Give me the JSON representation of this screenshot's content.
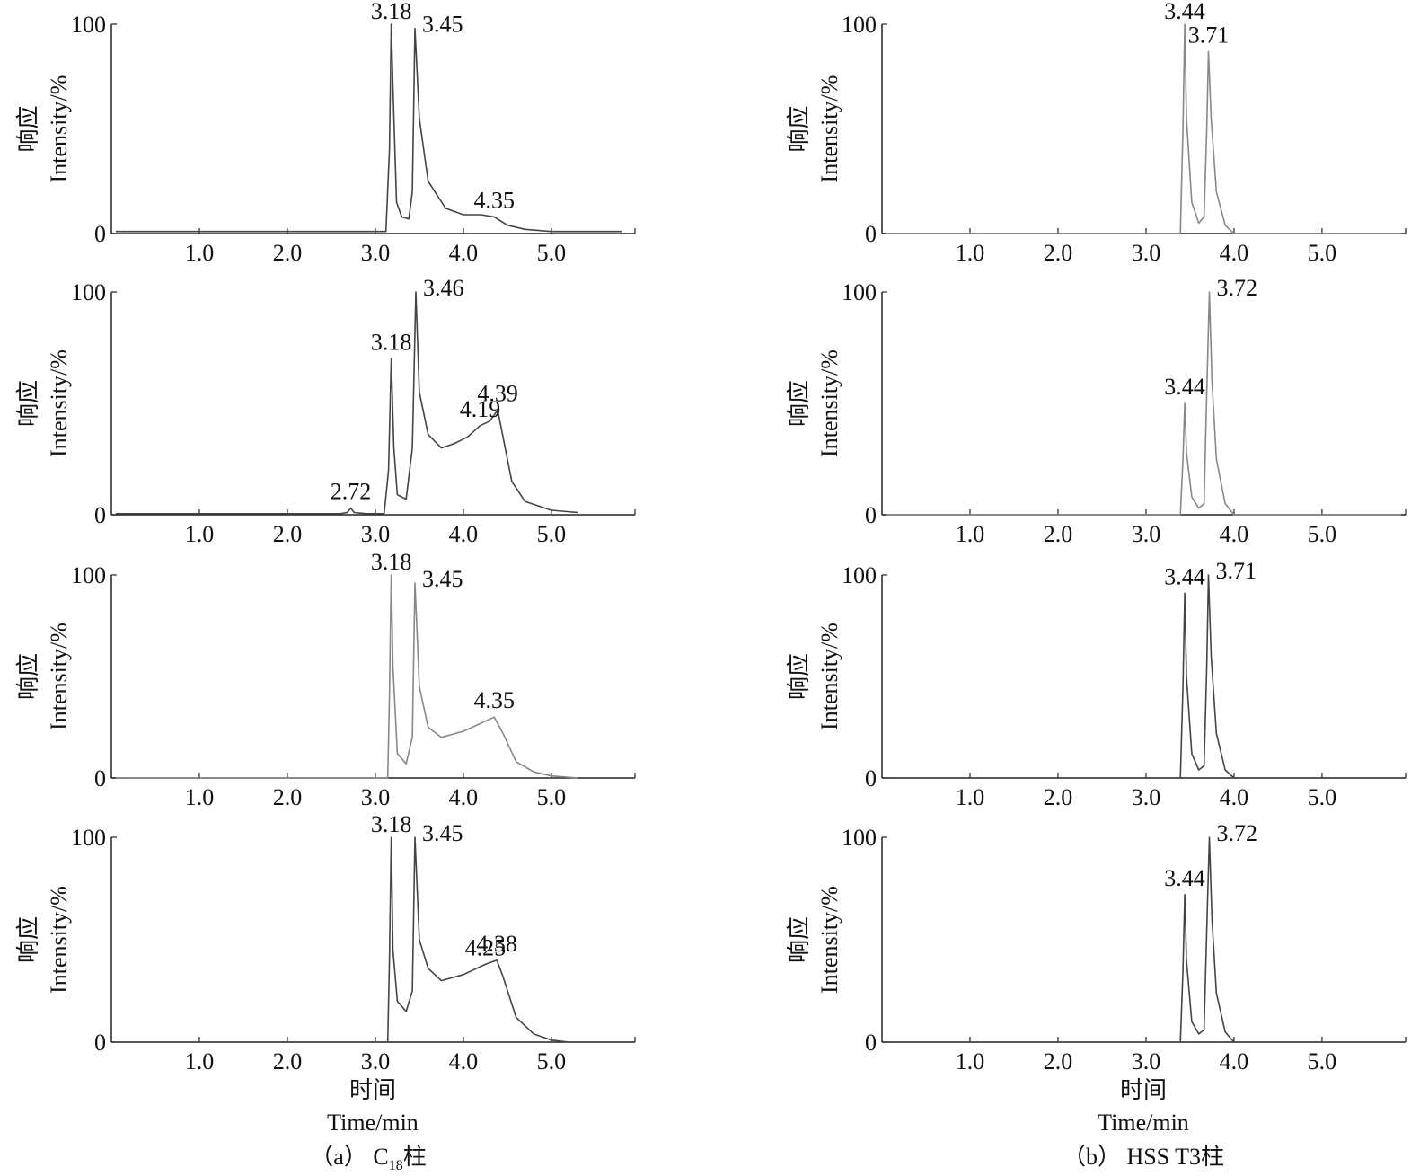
{
  "ytick_labels": [
    "0",
    "100"
  ],
  "ylabel_cn": "响应",
  "ylabel_en": "Intensity/%",
  "xlabel_cn": "时间",
  "xlabel_en": "Time/min",
  "captions": {
    "a": {
      "prefix": "（a） C",
      "sub": "18",
      "suffix": "柱"
    },
    "b": {
      "text": "（b） HSS T3柱"
    }
  },
  "colors": {
    "trace": "#444444",
    "trace_light": "#888888",
    "axis": "#222222"
  },
  "chart_data": [
    {
      "type": "line",
      "column": "a",
      "row": 1,
      "xlim": [
        0,
        5.95
      ],
      "ylim": [
        0,
        100
      ],
      "xticks": [
        "1.0",
        "2.0",
        "3.0",
        "4.0",
        "5.0"
      ],
      "yticks": [
        "0",
        "100"
      ],
      "x": [
        0.05,
        1.0,
        2.0,
        3.0,
        3.12,
        3.16,
        3.18,
        3.2,
        3.24,
        3.3,
        3.38,
        3.42,
        3.45,
        3.5,
        3.6,
        3.8,
        4.0,
        4.2,
        4.35,
        4.5,
        4.7,
        5.0,
        5.8
      ],
      "y": [
        1,
        1,
        1,
        1,
        1,
        40,
        100,
        70,
        15,
        8,
        7,
        20,
        98,
        55,
        25,
        12,
        9,
        9,
        8,
        4,
        2,
        1,
        1
      ],
      "peaks": [
        {
          "x": 3.18,
          "label": "3.18"
        },
        {
          "x": 3.45,
          "label": "3.45"
        },
        {
          "x": 4.35,
          "label": "4.35"
        }
      ]
    },
    {
      "type": "line",
      "column": "a",
      "row": 2,
      "xlim": [
        0,
        5.95
      ],
      "ylim": [
        0,
        100
      ],
      "xticks": [
        "1.0",
        "2.0",
        "3.0",
        "4.0",
        "5.0"
      ],
      "yticks": [
        "0",
        "100"
      ],
      "x": [
        0.05,
        1.0,
        2.0,
        2.6,
        2.68,
        2.72,
        2.76,
        2.9,
        3.1,
        3.15,
        3.18,
        3.21,
        3.25,
        3.35,
        3.42,
        3.46,
        3.5,
        3.6,
        3.75,
        3.9,
        4.05,
        4.19,
        4.3,
        4.39,
        4.45,
        4.55,
        4.7,
        5.0,
        5.3
      ],
      "y": [
        0.5,
        0.5,
        0.5,
        0.5,
        1,
        3,
        1,
        0.5,
        0.5,
        20,
        70,
        30,
        9,
        7,
        30,
        100,
        55,
        36,
        30,
        32,
        35,
        40,
        42,
        47,
        35,
        15,
        6,
        2,
        1
      ],
      "peaks": [
        {
          "x": 2.72,
          "label": "2.72"
        },
        {
          "x": 3.18,
          "label": "3.18"
        },
        {
          "x": 3.46,
          "label": "3.46"
        },
        {
          "x": 4.19,
          "label": "4.19"
        },
        {
          "x": 4.39,
          "label": "4.39"
        }
      ]
    },
    {
      "type": "line",
      "column": "a",
      "row": 3,
      "xlim": [
        0,
        5.95
      ],
      "ylim": [
        0,
        100
      ],
      "xticks": [
        "1.0",
        "2.0",
        "3.0",
        "4.0",
        "5.0"
      ],
      "yticks": [
        "0",
        "100"
      ],
      "x": [
        0.05,
        1.0,
        2.0,
        3.0,
        3.14,
        3.16,
        3.18,
        3.2,
        3.25,
        3.35,
        3.42,
        3.45,
        3.5,
        3.6,
        3.75,
        4.0,
        4.2,
        4.35,
        4.45,
        4.6,
        4.8,
        5.0,
        5.3
      ],
      "y": [
        0,
        0,
        0,
        0,
        0,
        40,
        100,
        55,
        12,
        7,
        20,
        96,
        45,
        25,
        20,
        23,
        27,
        30,
        22,
        8,
        3,
        1,
        0
      ],
      "peaks": [
        {
          "x": 3.18,
          "label": "3.18"
        },
        {
          "x": 3.45,
          "label": "3.45"
        },
        {
          "x": 4.35,
          "label": "4.35"
        }
      ]
    },
    {
      "type": "line",
      "column": "a",
      "row": 4,
      "xlim": [
        0,
        5.95
      ],
      "ylim": [
        0,
        100
      ],
      "xticks": [
        "1.0",
        "2.0",
        "3.0",
        "4.0",
        "5.0"
      ],
      "yticks": [
        "0",
        "100"
      ],
      "x": [
        0.05,
        1.0,
        2.0,
        3.0,
        3.14,
        3.16,
        3.18,
        3.2,
        3.25,
        3.35,
        3.42,
        3.45,
        3.5,
        3.6,
        3.75,
        4.0,
        4.25,
        4.38,
        4.45,
        4.6,
        4.8,
        5.0,
        5.2
      ],
      "y": [
        0,
        0,
        0,
        0,
        0,
        40,
        100,
        45,
        20,
        15,
        25,
        100,
        50,
        36,
        30,
        33,
        38,
        40,
        32,
        12,
        4,
        1,
        0
      ],
      "peaks": [
        {
          "x": 3.18,
          "label": "3.18"
        },
        {
          "x": 3.45,
          "label": "3.45"
        },
        {
          "x": 4.25,
          "label": "4.25"
        },
        {
          "x": 4.38,
          "label": "4.38"
        }
      ]
    },
    {
      "type": "line",
      "column": "b",
      "row": 1,
      "xlim": [
        0,
        5.95
      ],
      "ylim": [
        0,
        100
      ],
      "xticks": [
        "1.0",
        "2.0",
        "3.0",
        "4.0",
        "5.0"
      ],
      "yticks": [
        "0",
        "100"
      ],
      "x": [
        0.05,
        1.0,
        2.0,
        3.0,
        3.39,
        3.42,
        3.44,
        3.46,
        3.52,
        3.6,
        3.66,
        3.69,
        3.71,
        3.74,
        3.8,
        3.9,
        4.0,
        5.9
      ],
      "y": [
        0,
        0,
        0,
        0,
        0,
        50,
        100,
        55,
        15,
        5,
        8,
        50,
        87,
        55,
        20,
        4,
        0,
        0
      ],
      "peaks": [
        {
          "x": 3.44,
          "label": "3.44"
        },
        {
          "x": 3.71,
          "label": "3.71"
        }
      ]
    },
    {
      "type": "line",
      "column": "b",
      "row": 2,
      "xlim": [
        0,
        5.95
      ],
      "ylim": [
        0,
        100
      ],
      "xticks": [
        "1.0",
        "2.0",
        "3.0",
        "4.0",
        "5.0"
      ],
      "yticks": [
        "0",
        "100"
      ],
      "x": [
        0.05,
        1.0,
        2.0,
        3.0,
        3.39,
        3.42,
        3.44,
        3.46,
        3.52,
        3.6,
        3.66,
        3.69,
        3.72,
        3.75,
        3.8,
        3.9,
        4.0,
        5.9
      ],
      "y": [
        0,
        0,
        0,
        0,
        0,
        25,
        50,
        28,
        8,
        3,
        5,
        55,
        100,
        60,
        25,
        5,
        0,
        0
      ],
      "peaks": [
        {
          "x": 3.44,
          "label": "3.44"
        },
        {
          "x": 3.72,
          "label": "3.72"
        }
      ]
    },
    {
      "type": "line",
      "column": "b",
      "row": 3,
      "xlim": [
        0,
        5.95
      ],
      "ylim": [
        0,
        100
      ],
      "xticks": [
        "1.0",
        "2.0",
        "3.0",
        "4.0",
        "5.0"
      ],
      "yticks": [
        "0",
        "100"
      ],
      "x": [
        0.05,
        1.0,
        2.0,
        3.0,
        3.39,
        3.42,
        3.44,
        3.46,
        3.52,
        3.6,
        3.66,
        3.69,
        3.71,
        3.74,
        3.8,
        3.9,
        4.0,
        5.9
      ],
      "y": [
        0,
        0,
        0,
        0,
        0,
        45,
        91,
        50,
        12,
        4,
        6,
        55,
        100,
        60,
        22,
        4,
        0,
        0
      ],
      "peaks": [
        {
          "x": 3.44,
          "label": "3.44"
        },
        {
          "x": 3.71,
          "label": "3.71"
        }
      ]
    },
    {
      "type": "line",
      "column": "b",
      "row": 4,
      "xlim": [
        0,
        5.95
      ],
      "ylim": [
        0,
        100
      ],
      "xticks": [
        "1.0",
        "2.0",
        "3.0",
        "4.0",
        "5.0"
      ],
      "yticks": [
        "0",
        "100"
      ],
      "x": [
        0.05,
        1.0,
        2.0,
        3.0,
        3.39,
        3.42,
        3.44,
        3.46,
        3.52,
        3.6,
        3.66,
        3.69,
        3.72,
        3.75,
        3.8,
        3.9,
        4.0,
        5.9
      ],
      "y": [
        0,
        0,
        0,
        0,
        0,
        35,
        72,
        40,
        10,
        4,
        6,
        55,
        100,
        60,
        24,
        5,
        0,
        0
      ],
      "peaks": [
        {
          "x": 3.44,
          "label": "3.44"
        },
        {
          "x": 3.72,
          "label": "3.72"
        }
      ]
    }
  ]
}
